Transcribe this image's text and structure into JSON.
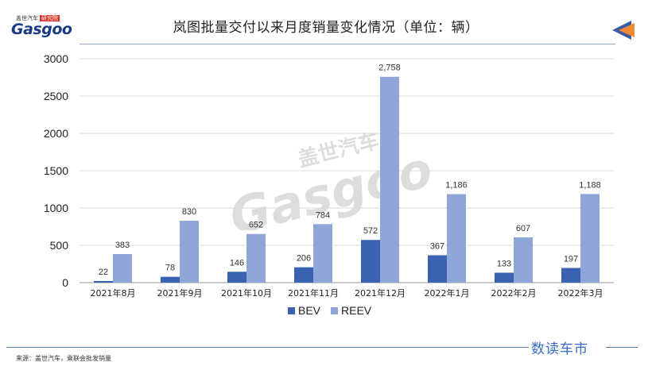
{
  "header": {
    "logo_top": "盖世汽车",
    "logo_tag": "研究院",
    "logo_brand": "Gasgoo",
    "title": "岚图批量交付以来月度销量变化情况（单位：辆）"
  },
  "footer": {
    "source": "来源：盖世汽车，乘联会批发销量",
    "brand": "数读车市"
  },
  "watermark": {
    "line1": "盖世汽车",
    "line2": "Gasgoo"
  },
  "colors": {
    "bev": "#3b62b0",
    "reev": "#8fa6d8",
    "title_rule": "#8fa2c4",
    "arrow_orange": "#f08a33",
    "arrow_blue": "#3b5ba8"
  },
  "chart_data": {
    "type": "bar",
    "categories": [
      "2021年8月",
      "2021年9月",
      "2021年10月",
      "2021年11月",
      "2021年12月",
      "2022年1月",
      "2022年2月",
      "2022年3月"
    ],
    "series": [
      {
        "name": "BEV",
        "values": [
          22,
          78,
          146,
          206,
          572,
          367,
          133,
          197
        ],
        "labels": [
          "22",
          "78",
          "146",
          "206",
          "572",
          "367",
          "133",
          "197"
        ]
      },
      {
        "name": "REEV",
        "values": [
          383,
          830,
          652,
          784,
          2758,
          1186,
          607,
          1188
        ],
        "labels": [
          "383",
          "830",
          "652",
          "784",
          "2,758",
          "1,186",
          "607",
          "1,188"
        ]
      }
    ],
    "ylim": [
      0,
      3000
    ],
    "yticks": [
      "0",
      "500",
      "1000",
      "1500",
      "2000",
      "2500",
      "3000"
    ],
    "grid": true,
    "legend": "bottom"
  }
}
